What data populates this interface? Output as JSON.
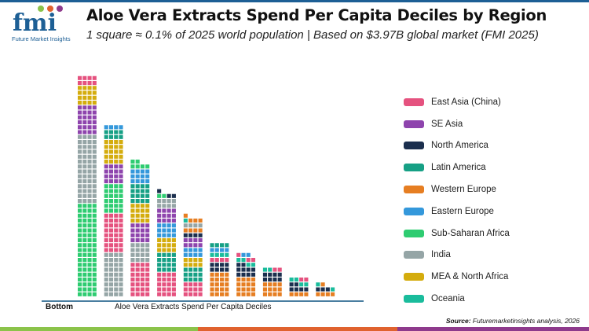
{
  "header": {
    "logo_text": "fmi",
    "logo_caption": "Future Market Insights",
    "title": "Aloe Vera Extracts Spend Per Capita Deciles by Region",
    "subtitle": "1 square ≈ 0.1% of 2025 world population | Based on $3.97B global market (FMI 2025)"
  },
  "source": {
    "label": "Source:",
    "text": "Futuremarketinsights analysis, 2026"
  },
  "colors": {
    "top_bar": "#1d5f95",
    "footer": [
      "#8bc34a",
      "#e0622f",
      "#8e3a8c"
    ]
  },
  "chart_data": {
    "type": "waffle",
    "title": "Aloe Vera Extracts Spend Per Capita Deciles by Region",
    "xlabel": "Aloe Vera Extracts Spend Per Capita Deciles",
    "x_start_label": "Bottom",
    "unit": "1 square ≈ 0.1% of 2025 world population",
    "legend_position": "right",
    "regions": [
      {
        "name": "East Asia (China)",
        "color": "#e5527f"
      },
      {
        "name": "SE Asia",
        "color": "#8e44ad"
      },
      {
        "name": "North America",
        "color": "#1b2f4e"
      },
      {
        "name": "Latin America",
        "color": "#16a085"
      },
      {
        "name": "Western Europe",
        "color": "#e67e22"
      },
      {
        "name": "Eastern Europe",
        "color": "#3498db"
      },
      {
        "name": "Sub-Saharan Africa",
        "color": "#2ecc71"
      },
      {
        "name": "India",
        "color": "#95a5a6"
      },
      {
        "name": "MEA & North Africa",
        "color": "#d4ac0d"
      },
      {
        "name": "Oceania",
        "color": "#1abc9c"
      }
    ],
    "deciles": [
      {
        "segments": [
          [
            "Sub-Saharan Africa",
            76
          ],
          [
            "India",
            56
          ],
          [
            "SE Asia",
            24
          ],
          [
            "MEA & North Africa",
            16
          ],
          [
            "East Asia (China)",
            8
          ]
        ]
      },
      {
        "segments": [
          [
            "India",
            36
          ],
          [
            "East Asia (China)",
            32
          ],
          [
            "Sub-Saharan Africa",
            24
          ],
          [
            "SE Asia",
            16
          ],
          [
            "MEA & North Africa",
            20
          ],
          [
            "Latin America",
            8
          ],
          [
            "Eastern Europe",
            4
          ]
        ]
      },
      {
        "segments": [
          [
            "East Asia (China)",
            28
          ],
          [
            "India",
            16
          ],
          [
            "SE Asia",
            16
          ],
          [
            "MEA & North Africa",
            16
          ],
          [
            "Latin America",
            16
          ],
          [
            "Eastern Europe",
            12
          ],
          [
            "Sub-Saharan Africa",
            6
          ]
        ]
      },
      {
        "segments": [
          [
            "East Asia (China)",
            20
          ],
          [
            "Latin America",
            16
          ],
          [
            "MEA & North Africa",
            12
          ],
          [
            "Eastern Europe",
            12
          ],
          [
            "SE Asia",
            12
          ],
          [
            "India",
            8
          ],
          [
            "Sub-Saharan Africa",
            2
          ],
          [
            "North America",
            3
          ]
        ]
      },
      {
        "segments": [
          [
            "East Asia (China)",
            12
          ],
          [
            "Latin America",
            12
          ],
          [
            "MEA & North Africa",
            8
          ],
          [
            "Eastern Europe",
            8
          ],
          [
            "SE Asia",
            8
          ],
          [
            "North America",
            4
          ],
          [
            "Western Europe",
            4
          ],
          [
            "India",
            4
          ],
          [
            "Oceania",
            1
          ],
          [
            "Western Europe",
            4
          ]
        ]
      },
      {
        "segments": [
          [
            "Western Europe",
            20
          ],
          [
            "North America",
            8
          ],
          [
            "East Asia (China)",
            4
          ],
          [
            "Oceania",
            4
          ],
          [
            "Eastern Europe",
            4
          ],
          [
            "Latin America",
            4
          ]
        ]
      },
      {
        "segments": [
          [
            "Western Europe",
            16
          ],
          [
            "North America",
            10
          ],
          [
            "Oceania",
            4
          ],
          [
            "East Asia (China)",
            3
          ],
          [
            "Eastern Europe",
            2
          ]
        ]
      },
      {
        "segments": [
          [
            "Western Europe",
            12
          ],
          [
            "North America",
            8
          ],
          [
            "Oceania",
            2
          ],
          [
            "East Asia (China)",
            2
          ]
        ]
      },
      {
        "segments": [
          [
            "Western Europe",
            4
          ],
          [
            "North America",
            6
          ],
          [
            "Oceania",
            4
          ],
          [
            "East Asia (China)",
            2
          ]
        ]
      },
      {
        "segments": [
          [
            "Western Europe",
            4
          ],
          [
            "North America",
            3
          ],
          [
            "Oceania",
            2
          ],
          [
            "Western Europe",
            1
          ]
        ]
      }
    ]
  }
}
